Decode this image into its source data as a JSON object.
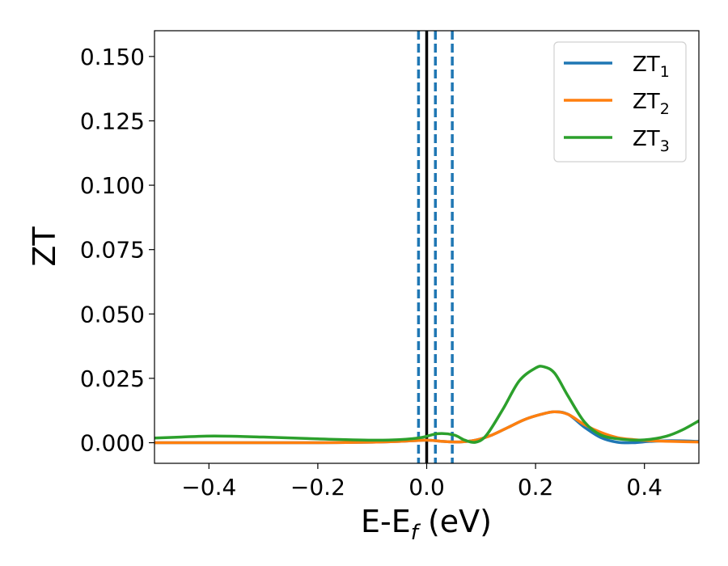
{
  "chart_data": {
    "type": "line",
    "xlabel": {
      "main": "E-E",
      "sub": "f",
      "tail": " (eV)"
    },
    "ylabel": "ZT",
    "xlim": [
      -0.5,
      0.5
    ],
    "ylim": [
      -0.008,
      0.16
    ],
    "x_ticks": [
      -0.4,
      -0.2,
      0.0,
      0.2,
      0.4
    ],
    "x_tick_labels": [
      "−0.4",
      "−0.2",
      "0.0",
      "0.2",
      "0.4"
    ],
    "y_ticks": [
      0.0,
      0.025,
      0.05,
      0.075,
      0.1,
      0.125,
      0.15
    ],
    "y_tick_labels": [
      "0.000",
      "0.025",
      "0.050",
      "0.075",
      "0.100",
      "0.125",
      "0.150"
    ],
    "grid": false,
    "legend_position": "top-right",
    "vertical_lines": [
      {
        "x": 0.0,
        "style": "solid",
        "color": "#000000"
      },
      {
        "x": -0.015,
        "style": "dashed",
        "color": "#1f77b4"
      },
      {
        "x": 0.016,
        "style": "dashed",
        "color": "#1f77b4"
      },
      {
        "x": 0.047,
        "style": "dashed",
        "color": "#1f77b4"
      }
    ],
    "series": [
      {
        "name": "ZT",
        "name_sub": "1",
        "color": "#1f77b4",
        "x": [
          -0.5,
          -0.4,
          -0.3,
          -0.2,
          -0.1,
          -0.05,
          0.0,
          0.03,
          0.06,
          0.09,
          0.12,
          0.15,
          0.18,
          0.21,
          0.235,
          0.26,
          0.29,
          0.32,
          0.35,
          0.38,
          0.41,
          0.45,
          0.5
        ],
        "y": [
          0.0,
          0.0,
          0.0,
          0.0,
          0.0002,
          0.0005,
          0.001,
          0.0005,
          0.0003,
          0.001,
          0.003,
          0.006,
          0.009,
          0.011,
          0.012,
          0.011,
          0.006,
          0.002,
          0.0002,
          0.0,
          0.0005,
          0.0008,
          0.0005
        ]
      },
      {
        "name": "ZT",
        "name_sub": "2",
        "color": "#ff7f0e",
        "x": [
          -0.5,
          -0.4,
          -0.3,
          -0.2,
          -0.1,
          -0.05,
          0.0,
          0.03,
          0.06,
          0.09,
          0.12,
          0.15,
          0.18,
          0.21,
          0.235,
          0.26,
          0.29,
          0.32,
          0.35,
          0.38,
          0.41,
          0.45,
          0.5
        ],
        "y": [
          0.0,
          0.0,
          0.0,
          0.0,
          0.0002,
          0.0005,
          0.001,
          0.0005,
          0.0003,
          0.001,
          0.003,
          0.006,
          0.009,
          0.011,
          0.012,
          0.011,
          0.007,
          0.004,
          0.002,
          0.0012,
          0.0008,
          0.0005,
          0.0003
        ]
      },
      {
        "name": "ZT",
        "name_sub": "3",
        "color": "#2ca02c",
        "x": [
          -0.5,
          -0.45,
          -0.39,
          -0.3,
          -0.2,
          -0.1,
          -0.05,
          -0.01,
          0.02,
          0.05,
          0.07,
          0.09,
          0.11,
          0.14,
          0.17,
          0.2,
          0.215,
          0.235,
          0.26,
          0.29,
          0.32,
          0.36,
          0.4,
          0.44,
          0.47,
          0.5
        ],
        "y": [
          0.0018,
          0.0022,
          0.0026,
          0.0022,
          0.0015,
          0.001,
          0.0012,
          0.002,
          0.0035,
          0.003,
          0.001,
          0.0002,
          0.003,
          0.013,
          0.024,
          0.029,
          0.0295,
          0.027,
          0.018,
          0.008,
          0.003,
          0.0013,
          0.0011,
          0.0025,
          0.005,
          0.0085
        ]
      }
    ]
  }
}
